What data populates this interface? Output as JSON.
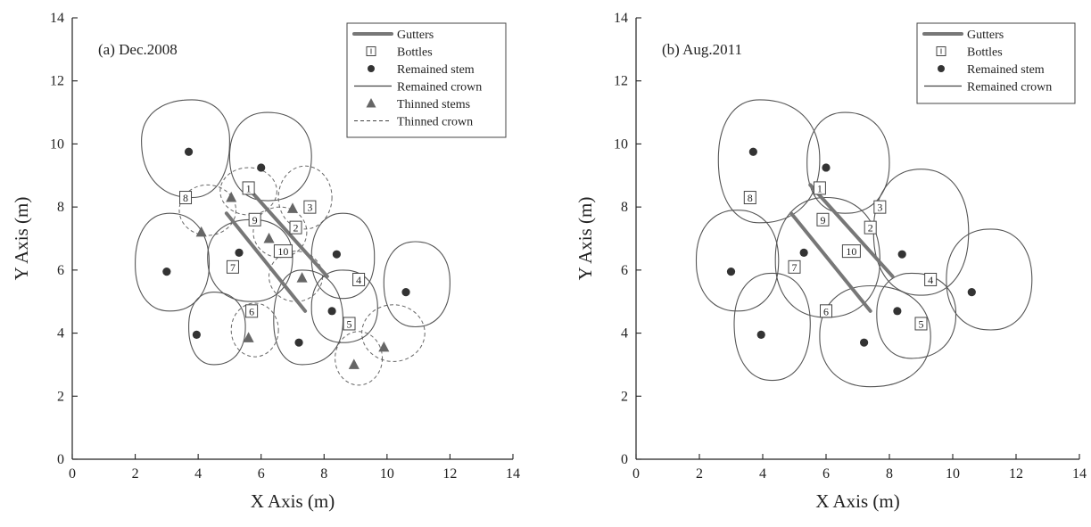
{
  "chart_data": [
    {
      "type": "scatter",
      "title": "(a) Dec.2008",
      "xlabel": "X Axis (m)",
      "ylabel": "Y Axis (m)",
      "xlim": [
        0,
        14
      ],
      "ylim": [
        0,
        14
      ],
      "xticks": [
        0,
        2,
        4,
        6,
        8,
        10,
        12,
        14
      ],
      "yticks": [
        0,
        2,
        4,
        6,
        8,
        10,
        12,
        14
      ],
      "legend": {
        "placement": "top-right",
        "entries": [
          "Gutters",
          "Bottles",
          "Remained stem",
          "Remained crown",
          "Thinned stems",
          "Thinned crown"
        ]
      },
      "gutters": [
        {
          "x1": 5.5,
          "y1": 8.7,
          "x2": 8.1,
          "y2": 5.8
        },
        {
          "x1": 4.9,
          "y1": 7.8,
          "x2": 7.4,
          "y2": 4.7
        }
      ],
      "bottles": [
        {
          "label": "1",
          "x": 5.6,
          "y": 8.6
        },
        {
          "label": "2",
          "x": 7.1,
          "y": 7.35
        },
        {
          "label": "3",
          "x": 7.55,
          "y": 8.0
        },
        {
          "label": "4",
          "x": 9.1,
          "y": 5.7
        },
        {
          "label": "5",
          "x": 8.8,
          "y": 4.3
        },
        {
          "label": "6",
          "x": 5.7,
          "y": 4.7
        },
        {
          "label": "7",
          "x": 5.1,
          "y": 6.1
        },
        {
          "label": "8",
          "x": 3.6,
          "y": 8.3
        },
        {
          "label": "9",
          "x": 5.8,
          "y": 7.6
        },
        {
          "label": "10",
          "x": 6.7,
          "y": 6.6
        }
      ],
      "remained_stems": [
        {
          "x": 3.7,
          "y": 9.75
        },
        {
          "x": 6.0,
          "y": 9.25
        },
        {
          "x": 3.0,
          "y": 5.95
        },
        {
          "x": 5.3,
          "y": 6.55
        },
        {
          "x": 8.4,
          "y": 6.5
        },
        {
          "x": 10.6,
          "y": 5.3
        },
        {
          "x": 3.95,
          "y": 3.95
        },
        {
          "x": 7.2,
          "y": 3.7
        },
        {
          "x": 8.25,
          "y": 4.7
        }
      ],
      "remained_crowns": [
        {
          "cx": 3.8,
          "cy": 10.1,
          "rx": 1.15,
          "ry": 1.15,
          "ext": [
            1.2,
            1.3,
            1.6,
            1.8
          ]
        },
        {
          "cx": 6.2,
          "cy": 9.6,
          "rx": 1.2,
          "ry": 1.1,
          "ext": [
            1.4,
            1.4,
            1.2,
            1.4
          ]
        },
        {
          "cx": 3.1,
          "cy": 6.2,
          "rx": 1.3,
          "ry": 1.3,
          "ext": [
            1.25,
            1.6,
            1.1,
            1.5
          ]
        },
        {
          "cx": 5.7,
          "cy": 6.4,
          "rx": 1.2,
          "ry": 1.3,
          "ext": [
            1.3,
            1.2,
            1.4,
            1.4
          ]
        },
        {
          "cx": 8.6,
          "cy": 6.4,
          "rx": 1.0,
          "ry": 1.1,
          "ext": [
            1.0,
            1.4,
            1.0,
            1.3
          ]
        },
        {
          "cx": 10.9,
          "cy": 5.6,
          "rx": 1.0,
          "ry": 1.0,
          "ext": [
            1.1,
            1.3,
            1.0,
            1.4
          ]
        },
        {
          "cx": 4.5,
          "cy": 4.2,
          "rx": 1.0,
          "ry": 1.0,
          "ext": [
            1.0,
            1.1,
            0.8,
            1.2
          ]
        },
        {
          "cx": 7.3,
          "cy": 4.4,
          "rx": 1.2,
          "ry": 1.2,
          "ext": [
            1.3,
            1.6,
            0.9,
            1.4
          ]
        },
        {
          "cx": 8.6,
          "cy": 4.8,
          "rx": 1.0,
          "ry": 1.0,
          "ext": [
            1.1,
            1.2,
            1.0,
            1.1
          ]
        }
      ],
      "thinned_stems": [
        {
          "x": 5.05,
          "y": 8.3
        },
        {
          "x": 4.1,
          "y": 7.2
        },
        {
          "x": 7.0,
          "y": 7.95
        },
        {
          "x": 6.25,
          "y": 7.0
        },
        {
          "x": 7.3,
          "y": 5.75
        },
        {
          "x": 5.6,
          "y": 3.85
        },
        {
          "x": 8.95,
          "y": 3.0
        },
        {
          "x": 9.9,
          "y": 3.55
        }
      ],
      "thinned_crowns": [
        {
          "cx": 4.3,
          "cy": 7.9,
          "rx": 0.9,
          "ry": 0.8
        },
        {
          "cx": 5.6,
          "cy": 8.5,
          "rx": 0.9,
          "ry": 0.75
        },
        {
          "cx": 7.4,
          "cy": 8.3,
          "rx": 0.85,
          "ry": 1.0
        },
        {
          "cx": 6.6,
          "cy": 7.2,
          "rx": 0.85,
          "ry": 0.8
        },
        {
          "cx": 7.1,
          "cy": 5.8,
          "rx": 0.85,
          "ry": 0.8
        },
        {
          "cx": 5.8,
          "cy": 4.1,
          "rx": 0.75,
          "ry": 0.85
        },
        {
          "cx": 9.1,
          "cy": 3.2,
          "rx": 0.75,
          "ry": 0.85
        },
        {
          "cx": 10.2,
          "cy": 4.0,
          "rx": 1.0,
          "ry": 0.9
        }
      ]
    },
    {
      "type": "scatter",
      "title": "(b) Aug.2011",
      "xlabel": "X Axis (m)",
      "ylabel": "Y Axis (m)",
      "xlim": [
        0,
        14
      ],
      "ylim": [
        0,
        14
      ],
      "xticks": [
        0,
        2,
        4,
        6,
        8,
        10,
        12,
        14
      ],
      "yticks": [
        0,
        2,
        4,
        6,
        8,
        10,
        12,
        14
      ],
      "legend": {
        "placement": "top-right",
        "entries": [
          "Gutters",
          "Bottles",
          "Remained stem",
          "Remained crown"
        ]
      },
      "gutters": [
        {
          "x1": 5.5,
          "y1": 8.7,
          "x2": 8.1,
          "y2": 5.8
        },
        {
          "x1": 4.9,
          "y1": 7.8,
          "x2": 7.4,
          "y2": 4.7
        }
      ],
      "bottles": [
        {
          "label": "1",
          "x": 5.8,
          "y": 8.6
        },
        {
          "label": "2",
          "x": 7.4,
          "y": 7.35
        },
        {
          "label": "3",
          "x": 7.7,
          "y": 8.0
        },
        {
          "label": "4",
          "x": 9.3,
          "y": 5.7
        },
        {
          "label": "5",
          "x": 9.0,
          "y": 4.3
        },
        {
          "label": "6",
          "x": 6.0,
          "y": 4.7
        },
        {
          "label": "7",
          "x": 5.0,
          "y": 6.1
        },
        {
          "label": "8",
          "x": 3.6,
          "y": 8.3
        },
        {
          "label": "9",
          "x": 5.9,
          "y": 7.6
        },
        {
          "label": "10",
          "x": 6.8,
          "y": 6.6
        }
      ],
      "remained_stems": [
        {
          "x": 3.7,
          "y": 9.75
        },
        {
          "x": 6.0,
          "y": 9.25
        },
        {
          "x": 3.0,
          "y": 5.95
        },
        {
          "x": 5.3,
          "y": 6.55
        },
        {
          "x": 8.4,
          "y": 6.5
        },
        {
          "x": 10.6,
          "y": 5.3
        },
        {
          "x": 3.95,
          "y": 3.95
        },
        {
          "x": 7.2,
          "y": 3.7
        },
        {
          "x": 8.25,
          "y": 4.7
        }
      ],
      "remained_crowns": [
        {
          "cx": 3.9,
          "cy": 9.5,
          "rx": 1.8,
          "ry": 1.8,
          "ext": [
            1.9,
            1.9,
            1.3,
            2.0
          ]
        },
        {
          "cx": 6.6,
          "cy": 9.4,
          "rx": 1.5,
          "ry": 1.4,
          "ext": [
            1.4,
            1.6,
            1.2,
            1.6
          ]
        },
        {
          "cx": 3.2,
          "cy": 6.3,
          "rx": 1.5,
          "ry": 1.5,
          "ext": [
            1.3,
            1.6,
            1.3,
            1.6
          ]
        },
        {
          "cx": 6.0,
          "cy": 6.3,
          "rx": 1.8,
          "ry": 1.7,
          "ext": [
            1.7,
            2.0,
            1.6,
            1.8
          ]
        },
        {
          "cx": 9.0,
          "cy": 7.2,
          "rx": 1.7,
          "ry": 1.7,
          "ext": [
            1.5,
            2.0,
            1.5,
            2.0
          ]
        },
        {
          "cx": 11.2,
          "cy": 5.7,
          "rx": 1.5,
          "ry": 1.4,
          "ext": [
            1.3,
            1.6,
            1.4,
            1.6
          ]
        },
        {
          "cx": 4.3,
          "cy": 4.3,
          "rx": 1.3,
          "ry": 1.3,
          "ext": [
            1.2,
            1.6,
            1.2,
            1.8
          ]
        },
        {
          "cx": 7.4,
          "cy": 3.9,
          "rx": 1.8,
          "ry": 1.8,
          "ext": [
            1.9,
            1.6,
            1.6,
            1.6
          ]
        },
        {
          "cx": 8.7,
          "cy": 4.6,
          "rx": 1.4,
          "ry": 1.3,
          "ext": [
            1.4,
            1.3,
            1.1,
            1.4
          ]
        }
      ]
    }
  ]
}
